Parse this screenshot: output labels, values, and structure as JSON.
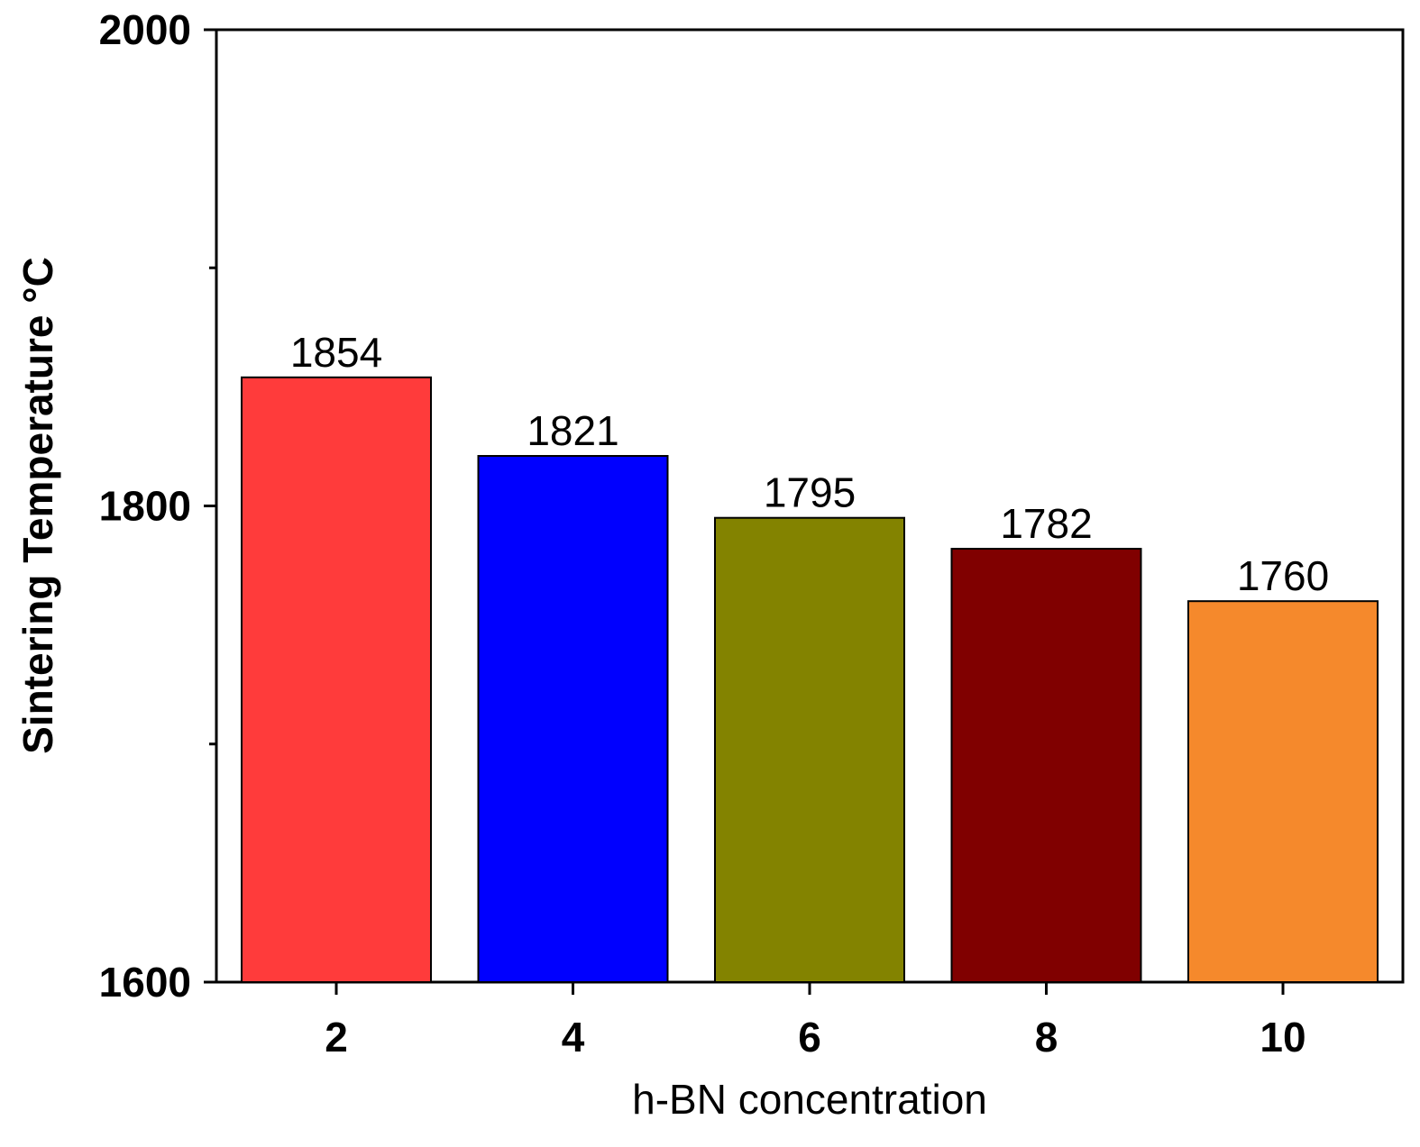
{
  "chart_data": {
    "type": "bar",
    "title": "",
    "xlabel": "h-BN concentration",
    "ylabel": "Sintering Temperature °C",
    "categories": [
      "2",
      "4",
      "6",
      "8",
      "10"
    ],
    "values": [
      1854,
      1821,
      1795,
      1782,
      1760
    ],
    "data_labels": [
      "1854",
      "1821",
      "1795",
      "1782",
      "1760"
    ],
    "bar_colors": [
      "#ff3b3b",
      "#0000ff",
      "#838300",
      "#800000",
      "#f5892c"
    ],
    "ylim": [
      1600,
      2000
    ],
    "yticks": [
      1600,
      1800,
      2000
    ],
    "ytick_labels": [
      "1600",
      "1800",
      "2000"
    ],
    "yminor_ticks": [
      1700,
      1900
    ],
    "grid": false,
    "legend": "none"
  }
}
